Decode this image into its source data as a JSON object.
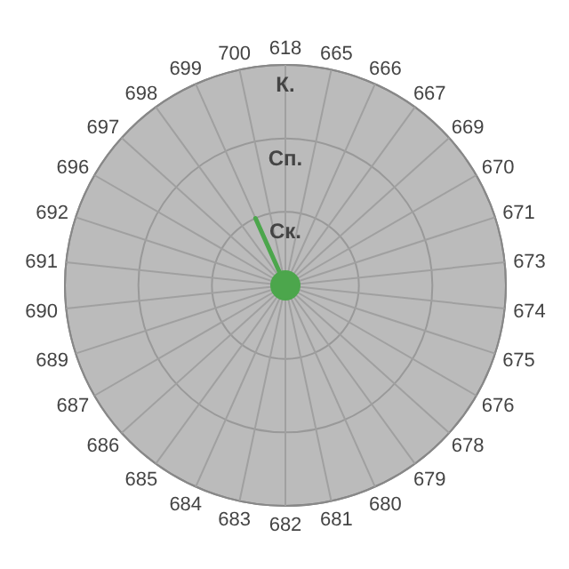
{
  "chart_data": {
    "type": "radar",
    "categories": [
      "618",
      "665",
      "666",
      "667",
      "669",
      "670",
      "671",
      "673",
      "674",
      "675",
      "676",
      "678",
      "679",
      "680",
      "681",
      "682",
      "683",
      "684",
      "685",
      "686",
      "687",
      "689",
      "690",
      "691",
      "692",
      "696",
      "697",
      "698",
      "699",
      "700"
    ],
    "ylim": [
      0,
      3
    ],
    "yticks": [
      {
        "value": 1,
        "label": "Ск."
      },
      {
        "value": 2,
        "label": "Сп."
      },
      {
        "value": 3,
        "label": "К."
      }
    ],
    "grid": true,
    "series": [
      {
        "color": "#4ca64c",
        "values": [
          0,
          0,
          0,
          0,
          0,
          0,
          0,
          0,
          0,
          0,
          0,
          0,
          0,
          0,
          0,
          0,
          0,
          0,
          0,
          0,
          0,
          0,
          0,
          0,
          0,
          0,
          0,
          0,
          1,
          0
        ]
      }
    ]
  }
}
